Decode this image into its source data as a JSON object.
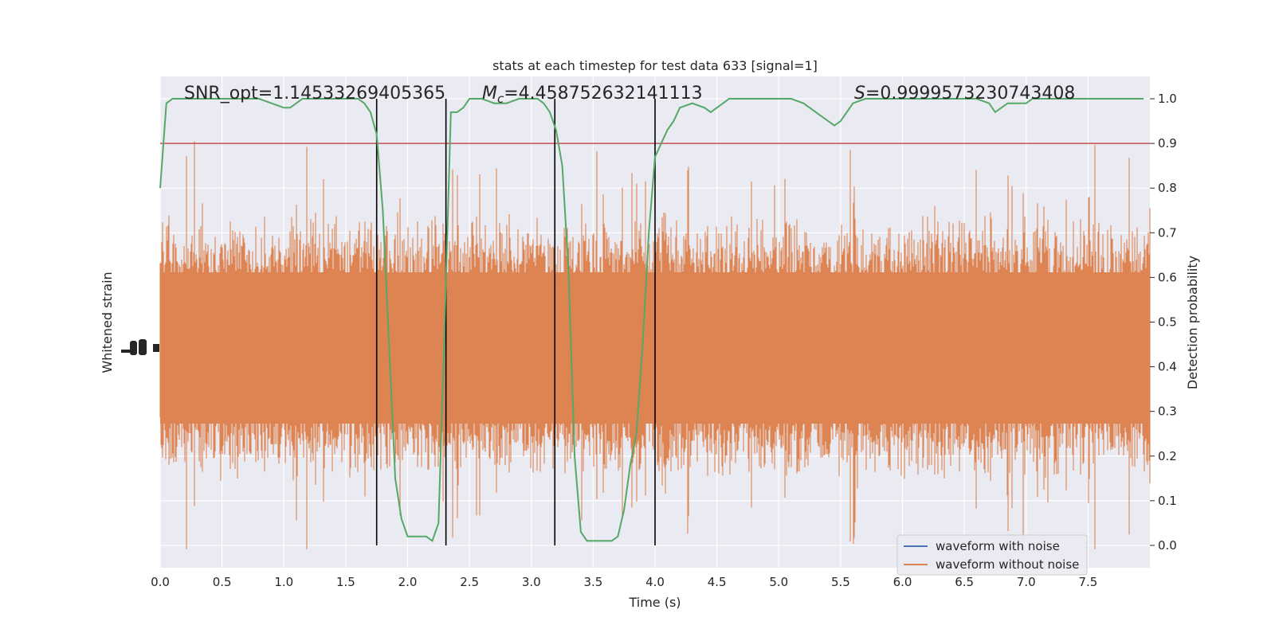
{
  "chart_data": {
    "type": "line",
    "title": "stats at each timestep for test data 633 [signal=1]",
    "xlabel": "Time (s)",
    "ylabel_left": "Whitened strain",
    "ylabel_right": "Detection probability",
    "xlim": [
      0.0,
      8.0
    ],
    "ylim_right": [
      -0.05,
      1.05
    ],
    "x_ticks": [
      "0.0",
      "0.5",
      "1.0",
      "1.5",
      "2.0",
      "2.5",
      "3.0",
      "3.5",
      "4.0",
      "4.5",
      "5.0",
      "5.5",
      "6.0",
      "6.5",
      "7.0",
      "7.5"
    ],
    "x_tick_values": [
      0.0,
      0.5,
      1.0,
      1.5,
      2.0,
      2.5,
      3.0,
      3.5,
      4.0,
      4.5,
      5.0,
      5.5,
      6.0,
      6.5,
      7.0,
      7.5
    ],
    "y_right_ticks": [
      "0.0",
      "0.1",
      "0.2",
      "0.3",
      "0.4",
      "0.5",
      "0.6",
      "0.7",
      "0.8",
      "0.9",
      "1.0"
    ],
    "y_right_tick_values": [
      0.0,
      0.1,
      0.2,
      0.3,
      0.4,
      0.5,
      0.6,
      0.7,
      0.8,
      0.9,
      1.0
    ],
    "annotations": {
      "snr": "SNR_opt=1.14533269405365",
      "mc_prefix": "M",
      "mc_sub": "c",
      "mc_value": "=4.458752632141113",
      "s_prefix": "S",
      "s_value": "=0.9999573230743408"
    },
    "threshold": 0.9,
    "vertical_lines_x": [
      1.75,
      2.31,
      3.19,
      4.0
    ],
    "legend": {
      "placement": "lower-right",
      "entries": [
        {
          "label": "waveform with noise",
          "color": "#4c72b0"
        },
        {
          "label": "waveform without noise",
          "color": "#dd8452"
        }
      ]
    },
    "series": [
      {
        "name": "Detection probability",
        "color": "#55a868",
        "x": [
          0.0,
          0.05,
          0.1,
          0.15,
          0.2,
          0.3,
          0.4,
          0.5,
          0.6,
          0.7,
          0.8,
          0.9,
          1.0,
          1.05,
          1.1,
          1.15,
          1.2,
          1.3,
          1.4,
          1.5,
          1.6,
          1.65,
          1.7,
          1.75,
          1.8,
          1.85,
          1.9,
          1.95,
          2.0,
          2.05,
          2.1,
          2.15,
          2.2,
          2.25,
          2.3,
          2.35,
          2.4,
          2.45,
          2.5,
          2.55,
          2.6,
          2.7,
          2.8,
          2.9,
          3.0,
          3.05,
          3.1,
          3.15,
          3.2,
          3.25,
          3.3,
          3.35,
          3.4,
          3.45,
          3.5,
          3.55,
          3.6,
          3.65,
          3.7,
          3.75,
          3.8,
          3.85,
          3.9,
          3.95,
          4.0,
          4.05,
          4.1,
          4.15,
          4.2,
          4.3,
          4.4,
          4.45,
          4.5,
          4.6,
          4.7,
          4.8,
          4.9,
          5.0,
          5.1,
          5.2,
          5.3,
          5.35,
          5.4,
          5.45,
          5.5,
          5.55,
          5.6,
          5.7,
          5.8,
          5.9,
          6.0,
          6.1,
          6.2,
          6.3,
          6.4,
          6.5,
          6.6,
          6.7,
          6.75,
          6.8,
          6.85,
          6.9,
          6.95,
          7.0,
          7.05,
          7.1,
          7.2,
          7.3,
          7.4,
          7.5,
          7.6,
          7.7,
          7.8,
          7.9,
          7.95
        ],
        "y": [
          0.8,
          0.99,
          1.0,
          1.0,
          1.0,
          1.0,
          1.0,
          1.0,
          1.0,
          1.0,
          1.0,
          0.99,
          0.98,
          0.98,
          0.99,
          1.0,
          1.0,
          1.0,
          1.0,
          1.0,
          1.0,
          0.99,
          0.97,
          0.92,
          0.75,
          0.45,
          0.15,
          0.06,
          0.02,
          0.02,
          0.02,
          0.02,
          0.01,
          0.05,
          0.5,
          0.97,
          0.97,
          0.98,
          1.0,
          1.0,
          1.0,
          0.99,
          0.99,
          1.0,
          1.0,
          1.0,
          0.99,
          0.97,
          0.93,
          0.85,
          0.62,
          0.2,
          0.03,
          0.01,
          0.01,
          0.01,
          0.01,
          0.01,
          0.02,
          0.08,
          0.18,
          0.25,
          0.45,
          0.7,
          0.87,
          0.9,
          0.93,
          0.95,
          0.98,
          0.99,
          0.98,
          0.97,
          0.98,
          1.0,
          1.0,
          1.0,
          1.0,
          1.0,
          1.0,
          0.99,
          0.97,
          0.96,
          0.95,
          0.94,
          0.95,
          0.97,
          0.99,
          1.0,
          1.0,
          1.0,
          1.0,
          1.0,
          1.0,
          1.0,
          1.0,
          1.0,
          1.0,
          0.99,
          0.97,
          0.98,
          0.99,
          0.99,
          0.99,
          0.99,
          1.0,
          1.0,
          1.0,
          1.0,
          1.0,
          1.0,
          1.0,
          1.0,
          1.0,
          1.0,
          1.0
        ]
      }
    ]
  }
}
